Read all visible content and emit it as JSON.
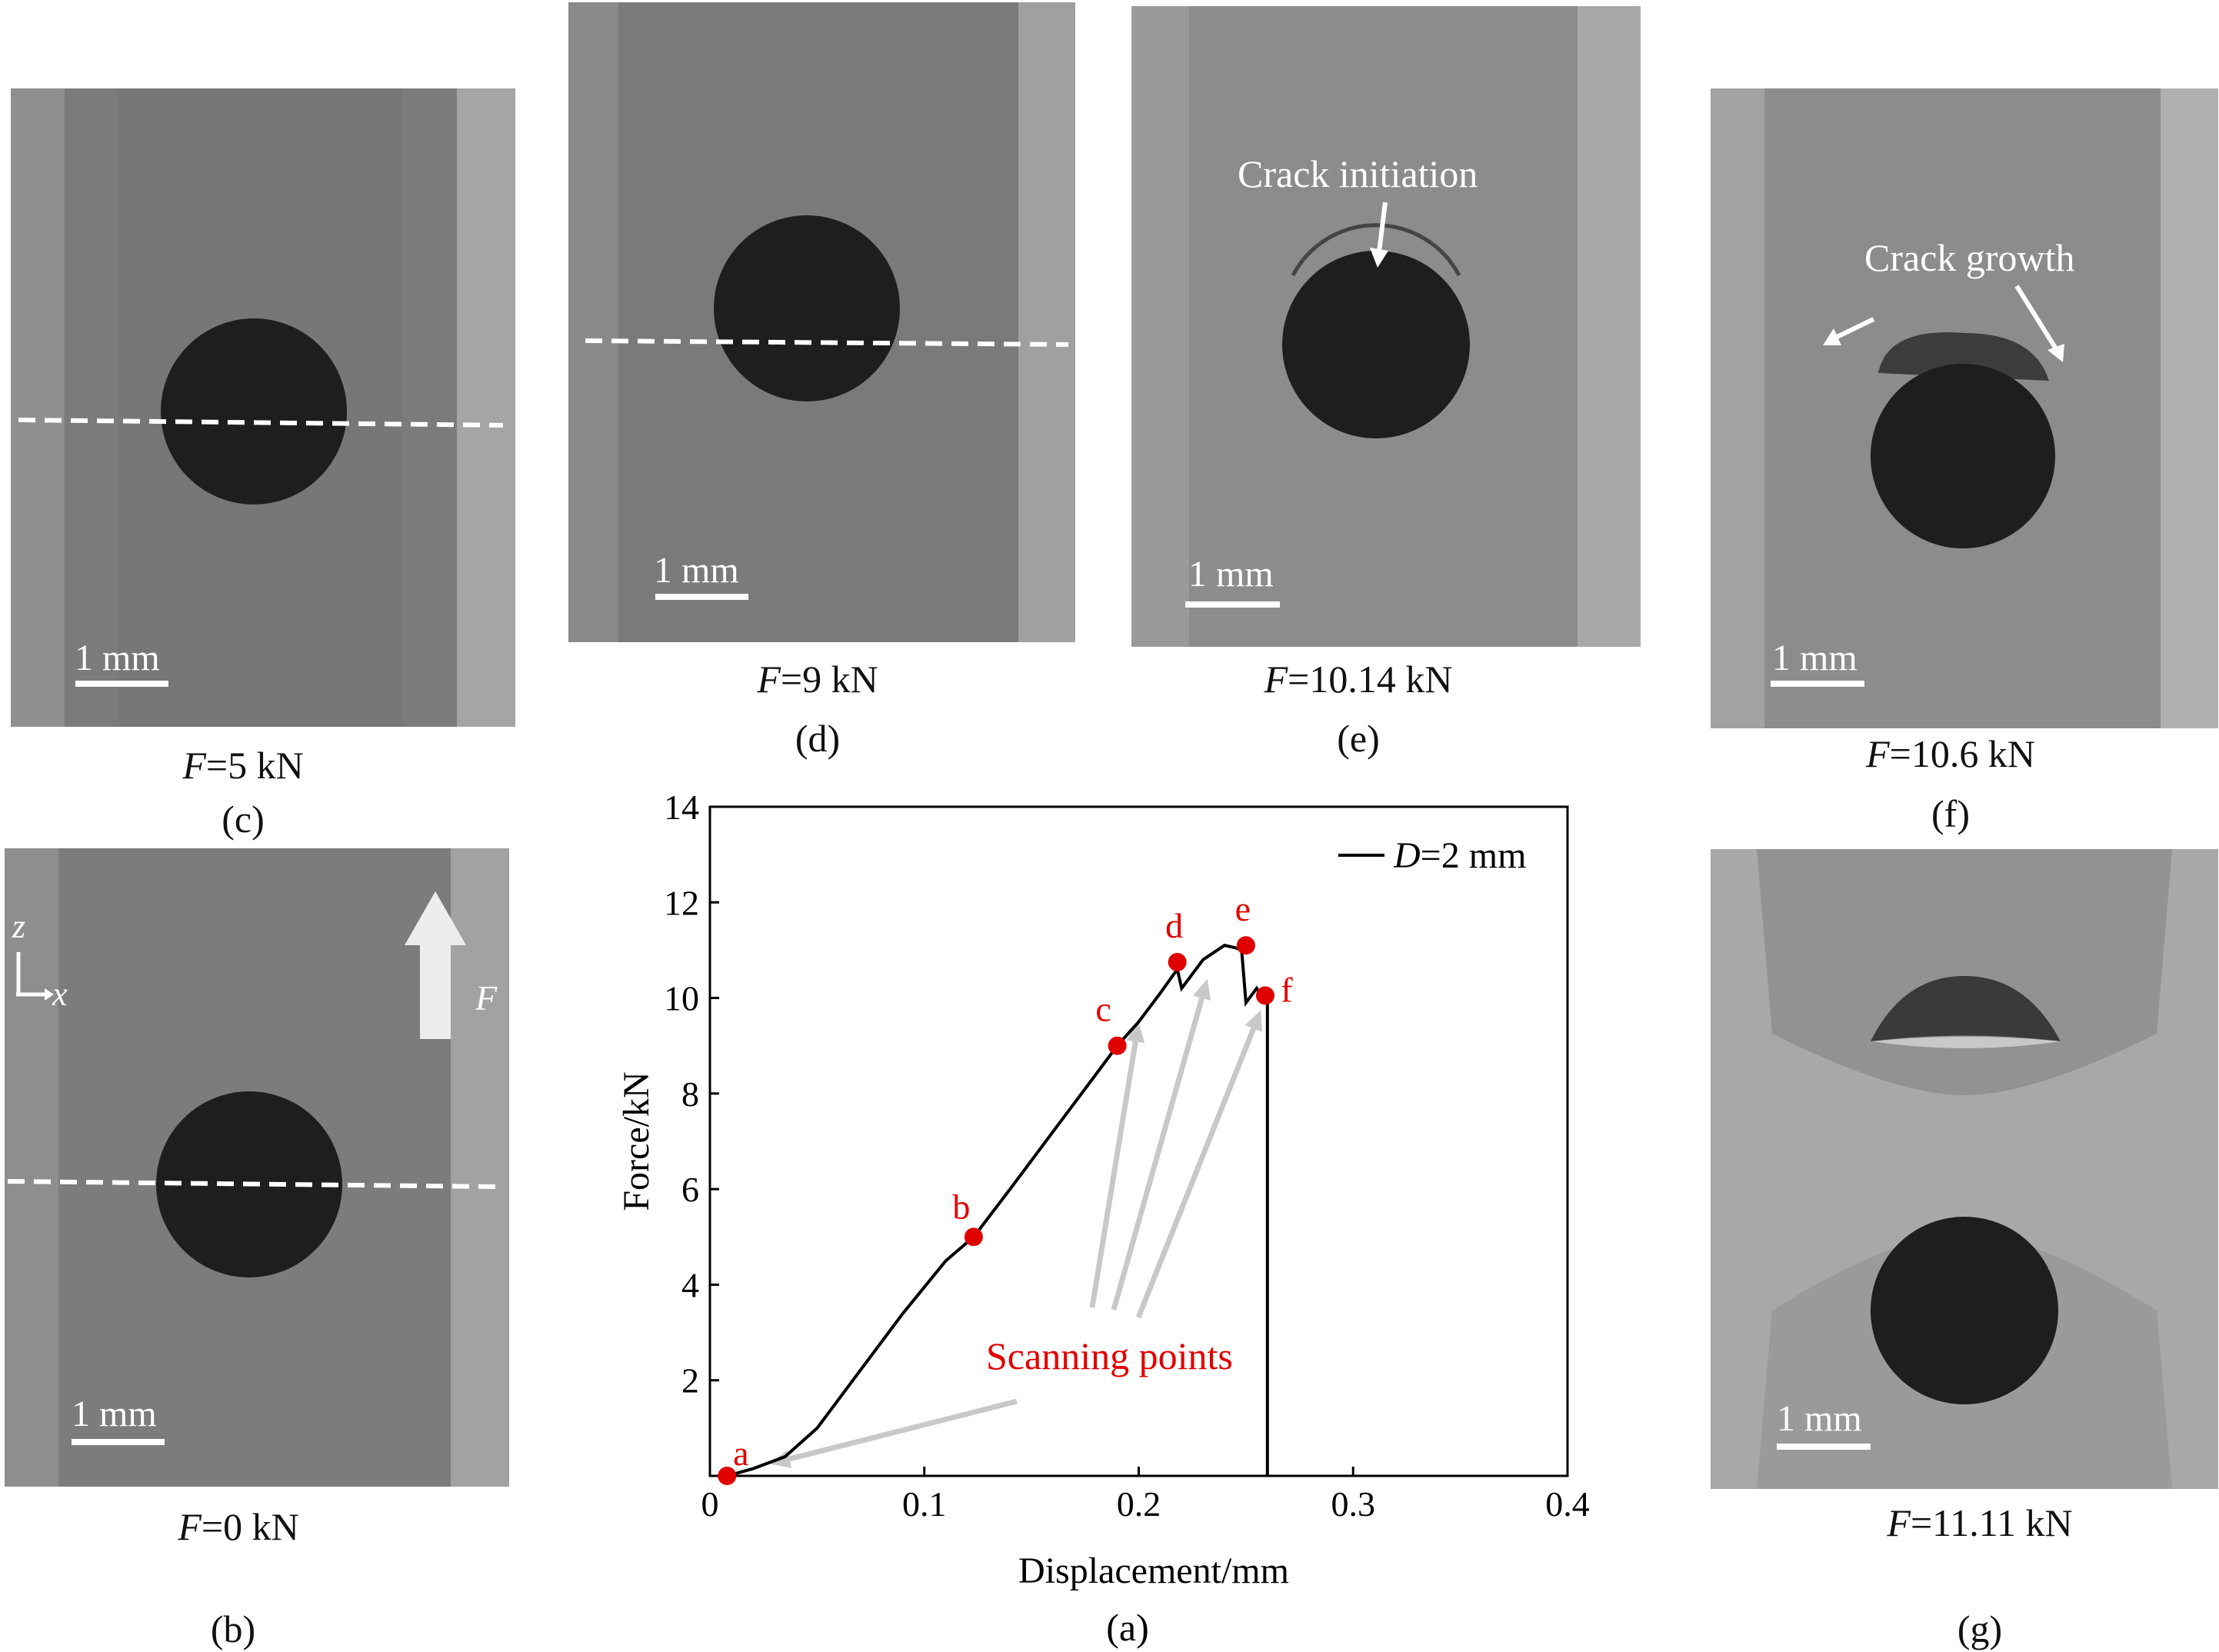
{
  "panels": {
    "b": {
      "letter": "(b)",
      "force_prefix": "F",
      "force_value": "=0 kN",
      "scale": "1 mm",
      "axis_z": "z",
      "axis_x": "x",
      "load_arrow": "F"
    },
    "c": {
      "letter": "(c)",
      "force_prefix": "F",
      "force_value": "=5 kN",
      "scale": "1 mm"
    },
    "d": {
      "letter": "(d)",
      "force_prefix": "F",
      "force_value": "=9 kN",
      "scale": "1 mm"
    },
    "e": {
      "letter": "(e)",
      "force_prefix": "F",
      "force_value": "=10.14 kN",
      "scale": "1 mm",
      "annotation": "Crack initiation"
    },
    "f": {
      "letter": "(f)",
      "force_prefix": "F",
      "force_value": "=10.6 kN",
      "scale": "1 mm",
      "annotation": "Crack growth"
    },
    "g": {
      "letter": "(g)",
      "force_prefix": "F",
      "force_value": "=11.11 kN",
      "scale": "1 mm"
    }
  },
  "chart_panel_letter": "(a)",
  "chart_data": {
    "type": "line",
    "title": "",
    "xlabel": "Displacement/mm",
    "ylabel": "Force/kN",
    "xlim": [
      0,
      0.4
    ],
    "ylim": [
      0,
      14
    ],
    "xticks": [
      "0",
      "0.1",
      "0.2",
      "0.3",
      "0.4"
    ],
    "yticks": [
      "2",
      "4",
      "6",
      "8",
      "10",
      "12",
      "14"
    ],
    "legend_position": "top-right",
    "series": [
      {
        "name_prefix": "D",
        "name_suffix": "=2 mm",
        "color": "#000000",
        "x": [
          0.008,
          0.02,
          0.035,
          0.05,
          0.07,
          0.09,
          0.11,
          0.123,
          0.14,
          0.16,
          0.18,
          0.19,
          0.2,
          0.21,
          0.218,
          0.22,
          0.23,
          0.24,
          0.245,
          0.248,
          0.25,
          0.255,
          0.258,
          0.26,
          0.26
        ],
        "y": [
          0.0,
          0.15,
          0.4,
          1.0,
          2.2,
          3.4,
          4.5,
          5.0,
          6.0,
          7.2,
          8.4,
          9.0,
          9.5,
          10.1,
          10.6,
          10.2,
          10.8,
          11.1,
          11.05,
          11.0,
          9.9,
          10.2,
          10.0,
          10.0,
          0.0
        ]
      }
    ],
    "scan_points": [
      {
        "label": "a",
        "x": 0.008,
        "y": 0.0
      },
      {
        "label": "b",
        "x": 0.123,
        "y": 5.0
      },
      {
        "label": "c",
        "x": 0.19,
        "y": 9.0
      },
      {
        "label": "d",
        "x": 0.218,
        "y": 10.75
      },
      {
        "label": "e",
        "x": 0.25,
        "y": 11.1
      },
      {
        "label": "f",
        "x": 0.259,
        "y": 10.05
      }
    ],
    "annotation": "Scanning points",
    "point_color": "#e00000",
    "arrow_color": "#c8c8c8"
  }
}
